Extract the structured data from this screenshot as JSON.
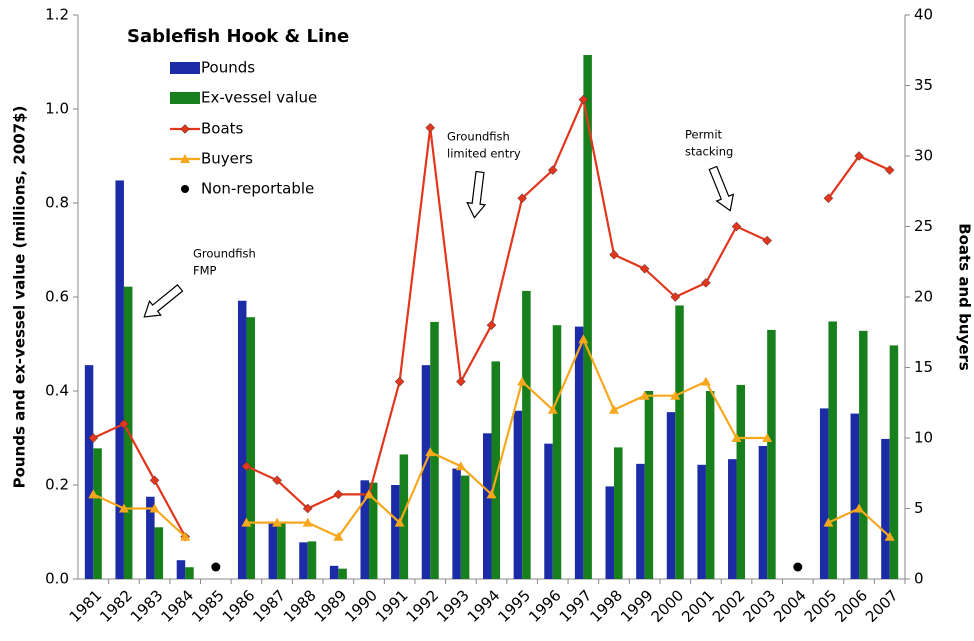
{
  "chart_data": {
    "type": "bar-line",
    "title": "Sablefish Hook & Line",
    "y_label": "Pounds and ex-vessel value (millions, 2007$)",
    "y2_label": "Boats and buyers",
    "categories": [
      "1981",
      "1982",
      "1983",
      "1984",
      "1985",
      "1986",
      "1987",
      "1988",
      "1989",
      "1990",
      "1991",
      "1992",
      "1993",
      "1994",
      "1995",
      "1996",
      "1997",
      "1998",
      "1999",
      "2000",
      "2001",
      "2002",
      "2003",
      "2004",
      "2005",
      "2006",
      "2007"
    ],
    "series": [
      {
        "name": "Pounds",
        "kind": "bar",
        "color": "#1b2ca6",
        "values": [
          0.455,
          0.848,
          0.175,
          0.04,
          null,
          0.592,
          0.12,
          0.078,
          0.028,
          0.21,
          0.2,
          0.455,
          0.235,
          0.31,
          0.358,
          0.288,
          0.537,
          0.197,
          0.245,
          0.355,
          0.243,
          0.255,
          0.283,
          null,
          0.363,
          0.352,
          0.298
        ]
      },
      {
        "name": "Ex-vessel value",
        "kind": "bar",
        "color": "#17801c",
        "values": [
          0.278,
          0.622,
          0.11,
          0.025,
          null,
          0.557,
          0.12,
          0.08,
          0.022,
          0.205,
          0.265,
          0.547,
          0.22,
          0.463,
          0.613,
          0.54,
          1.115,
          0.28,
          0.4,
          0.582,
          0.4,
          0.413,
          0.53,
          null,
          0.548,
          0.528,
          0.497
        ]
      },
      {
        "name": "Boats",
        "kind": "line",
        "marker": "diamond",
        "axis": "y2",
        "color": "#e2361d",
        "values": [
          10,
          11,
          7,
          3,
          null,
          8,
          7,
          5,
          6,
          6,
          14,
          32,
          14,
          18,
          27,
          29,
          34,
          23,
          22,
          20,
          21,
          25,
          24,
          null,
          27,
          30,
          29
        ]
      },
      {
        "name": "Buyers",
        "kind": "line",
        "marker": "triangle",
        "axis": "y2",
        "color": "#f6a81d",
        "values": [
          6,
          5,
          5,
          3,
          null,
          4,
          4,
          4,
          3,
          6,
          4,
          9,
          8,
          6,
          14,
          12,
          17,
          12,
          13,
          13,
          14,
          10,
          10,
          null,
          4,
          5,
          3
        ]
      },
      {
        "name": "Non-reportable",
        "kind": "point",
        "axis": "y2",
        "color": "#000000",
        "values": [
          null,
          null,
          null,
          null,
          0,
          null,
          null,
          null,
          null,
          null,
          null,
          null,
          null,
          null,
          null,
          null,
          null,
          null,
          null,
          null,
          null,
          null,
          null,
          0,
          null,
          null,
          null
        ]
      }
    ],
    "ylim": [
      0,
      1.2
    ],
    "yticks": [
      {
        "value": 0,
        "label": "0.0"
      },
      {
        "value": 0.2,
        "label": "0.2"
      },
      {
        "value": 0.4,
        "label": "0.4"
      },
      {
        "value": 0.6,
        "label": "0.6"
      },
      {
        "value": 0.8,
        "label": "0.8"
      },
      {
        "value": 1,
        "label": "1.0"
      },
      {
        "value": 1.2,
        "label": "1.2"
      }
    ],
    "y2lim": [
      0,
      40
    ],
    "y2ticks": [
      0,
      5,
      10,
      15,
      20,
      25,
      30,
      35,
      40
    ],
    "grid": false,
    "annotations": [
      {
        "lines": [
          "Groundfish",
          "FMP"
        ]
      },
      {
        "lines": [
          "Groundfish",
          "limited entry"
        ]
      },
      {
        "lines": [
          "Permit",
          "stacking"
        ]
      }
    ]
  }
}
